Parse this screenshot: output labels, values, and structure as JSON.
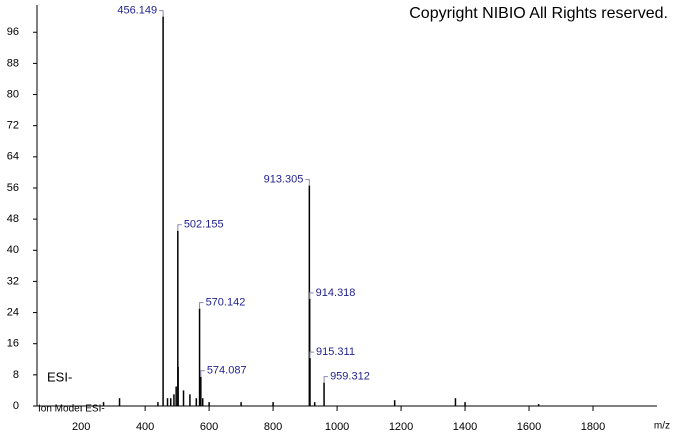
{
  "chart_data": {
    "type": "stick",
    "copyright": "Copyright NIBIO All Rights reserved.",
    "mode_label": "ESI-",
    "ion_mode": "Ion Mode: ESI-",
    "x_label": "m/z",
    "xlim": [
      62,
      2000
    ],
    "xticks": [
      200,
      400,
      600,
      800,
      1000,
      1200,
      1400,
      1600,
      1800
    ],
    "ylim": [
      0,
      103
    ],
    "yticks": [
      0,
      8,
      16,
      24,
      32,
      40,
      48,
      56,
      64,
      72,
      80,
      88,
      96
    ],
    "color": "#000000",
    "label_color": "#1f1f8f",
    "peaks": {
      "x": [
        456.149,
        502.155,
        570.142,
        574.087,
        913.305,
        914.318,
        915.311,
        959.312
      ],
      "values": [
        100,
        45,
        25,
        7.5,
        56.6,
        27.5,
        12.3,
        6
      ]
    },
    "minor_peaks": {
      "x": [
        270,
        320,
        440,
        470,
        480,
        490,
        497,
        503.16,
        520,
        540,
        560,
        580,
        600,
        700,
        800,
        930,
        1180,
        1370,
        1400,
        1630
      ],
      "values": [
        1,
        2,
        1,
        2,
        2,
        3,
        5,
        10,
        4,
        3,
        2,
        2,
        1,
        1,
        1,
        1,
        1.5,
        2,
        1,
        0.5
      ]
    }
  }
}
